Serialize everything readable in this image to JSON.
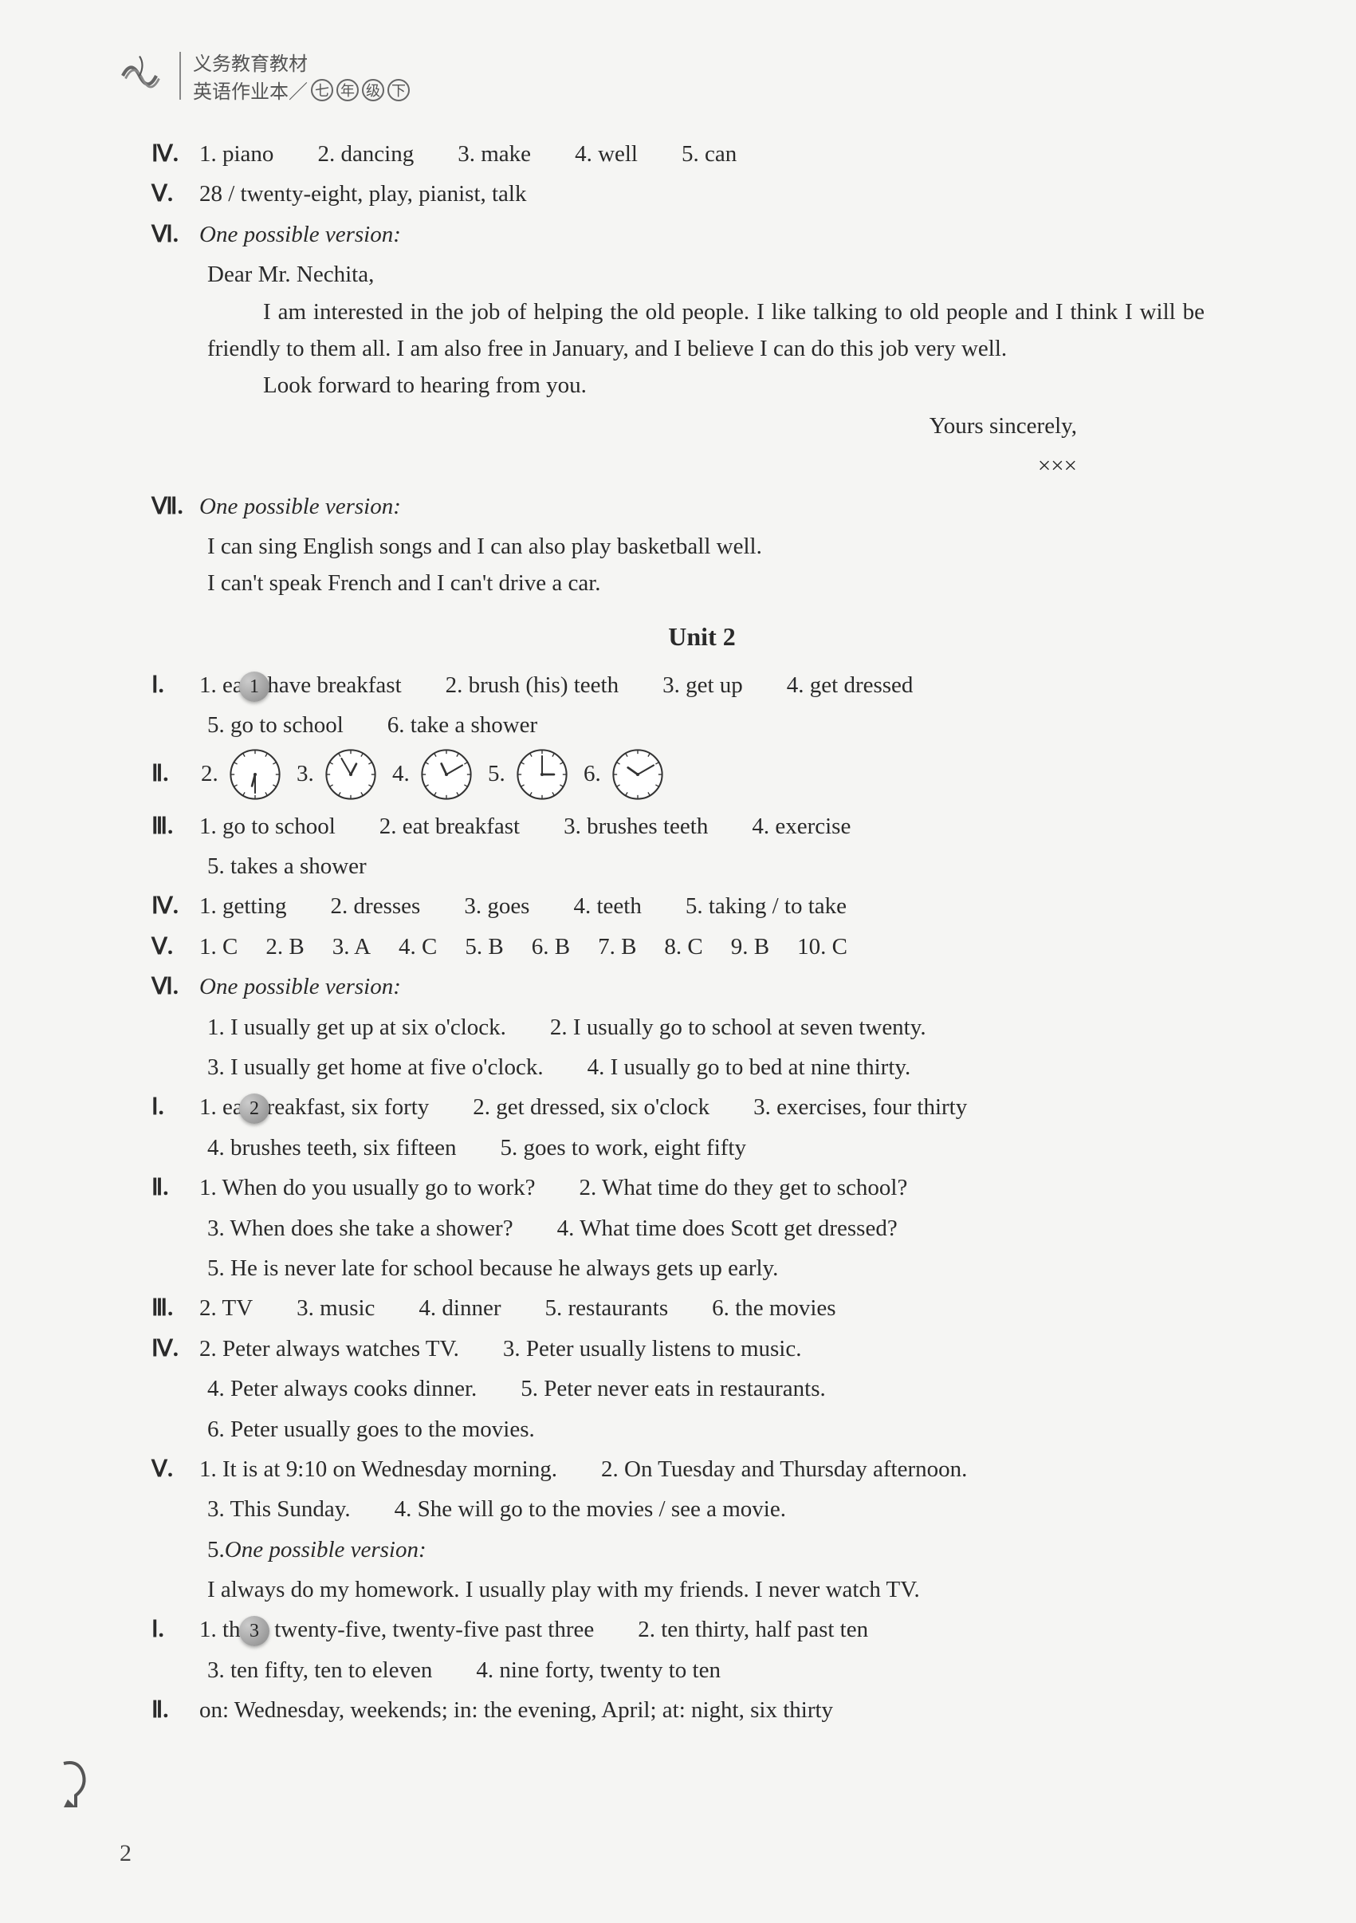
{
  "header": {
    "line1": "义务教育教材",
    "line2_prefix": "英语作业本／",
    "grade_chars": [
      "七",
      "年",
      "级",
      "下"
    ]
  },
  "top": {
    "iv": {
      "roman": "Ⅳ.",
      "items": [
        "1. piano",
        "2. dancing",
        "3. make",
        "4. well",
        "5. can"
      ]
    },
    "v": {
      "roman": "Ⅴ.",
      "text": "28 / twenty-eight, play, pianist, talk"
    },
    "vi": {
      "roman": "Ⅵ.",
      "lead": "One possible version:",
      "salutation": "Dear Mr. Nechita,",
      "para": "I am interested in the job of helping the old people. I like talking to old people and I think I will be friendly to them all. I am also free in January, and I believe I can do this job very well.",
      "para2": "Look forward to hearing from you.",
      "closing": "Yours sincerely,",
      "signature": "×××"
    },
    "vii": {
      "roman": "Ⅶ.",
      "lead": "One possible version:",
      "l1": "I can sing English songs and I can also play basketball well.",
      "l2": "I can't speak French and I can't drive a car."
    }
  },
  "unit_title": "Unit 2",
  "s1": {
    "badge": "1",
    "i": {
      "roman": "Ⅰ.",
      "r1": [
        "1. eat / have breakfast",
        "2. brush (his) teeth",
        "3. get up",
        "4. get dressed"
      ],
      "r2": [
        "5. go to school",
        "6. take a shower"
      ]
    },
    "ii": {
      "roman": "Ⅱ.",
      "clocks": [
        {
          "label": "2.",
          "h": 6,
          "m": 30
        },
        {
          "label": "3.",
          "h": 12,
          "m": 55
        },
        {
          "label": "4.",
          "h": 11,
          "m": 10
        },
        {
          "label": "5.",
          "h": 3,
          "m": 0
        },
        {
          "label": "6.",
          "h": 10,
          "m": 10
        }
      ]
    },
    "iii": {
      "roman": "Ⅲ.",
      "r1": [
        "1. go to school",
        "2. eat breakfast",
        "3. brushes teeth",
        "4. exercise"
      ],
      "r2": [
        "5. takes a shower"
      ]
    },
    "iv": {
      "roman": "Ⅳ.",
      "items": [
        "1. getting",
        "2. dresses",
        "3. goes",
        "4. teeth",
        "5. taking / to take"
      ]
    },
    "v": {
      "roman": "Ⅴ.",
      "items": [
        "1. C",
        "2. B",
        "3. A",
        "4. C",
        "5. B",
        "6. B",
        "7. B",
        "8. C",
        "9. B",
        "10. C"
      ]
    },
    "vi": {
      "roman": "Ⅵ.",
      "lead": "One possible version:",
      "r1": [
        "1. I usually get up at six o'clock.",
        "2. I usually go to school at seven twenty."
      ],
      "r2": [
        "3. I usually get home at five o'clock.",
        "4. I usually go to bed at nine thirty."
      ]
    }
  },
  "s2": {
    "badge": "2",
    "i": {
      "roman": "Ⅰ.",
      "r1": [
        "1. eat breakfast, six forty",
        "2. get dressed, six o'clock",
        "3. exercises, four thirty"
      ],
      "r2": [
        "4. brushes teeth, six fifteen",
        "5. goes to work, eight fifty"
      ]
    },
    "ii": {
      "roman": "Ⅱ.",
      "r1": [
        "1. When do you usually go to work?",
        "2. What time do they get to school?"
      ],
      "r2": [
        "3. When does she take a shower?",
        "4. What time does Scott get dressed?"
      ],
      "r3": [
        "5. He is never late for school because he always gets up early."
      ]
    },
    "iii": {
      "roman": "Ⅲ.",
      "items": [
        "2. TV",
        "3. music",
        "4. dinner",
        "5. restaurants",
        "6. the movies"
      ]
    },
    "iv": {
      "roman": "Ⅳ.",
      "r1": [
        "2. Peter always watches TV.",
        "3. Peter usually listens to music."
      ],
      "r2": [
        "4. Peter always cooks dinner.",
        "5. Peter never eats in restaurants."
      ],
      "r3": [
        "6. Peter usually goes to the movies."
      ]
    },
    "v": {
      "roman": "Ⅴ.",
      "r1": [
        "1. It is at 9:10 on Wednesday morning.",
        "2. On Tuesday and Thursday afternoon."
      ],
      "r2": [
        "3. This Sunday.",
        "4. She will go to the movies / see a movie."
      ],
      "r3_lead": "5. ",
      "r3_italic": "One possible version:",
      "r4": "I always do my homework. I usually play with my friends. I never watch TV."
    }
  },
  "s3": {
    "badge": "3",
    "i": {
      "roman": "Ⅰ.",
      "r1": [
        "1. three twenty-five, twenty-five past three",
        "2. ten thirty, half past ten"
      ],
      "r2": [
        "3. ten fifty, ten to eleven",
        "4. nine forty, twenty to ten"
      ]
    },
    "ii": {
      "roman": "Ⅱ.",
      "text": "on: Wednesday, weekends; in: the evening, April; at: night, six thirty"
    }
  },
  "page_number": "2",
  "colors": {
    "text": "#2a2a2a",
    "bg": "#f5f5f3",
    "clock_face": "#ffffff",
    "clock_stroke": "#333333"
  }
}
